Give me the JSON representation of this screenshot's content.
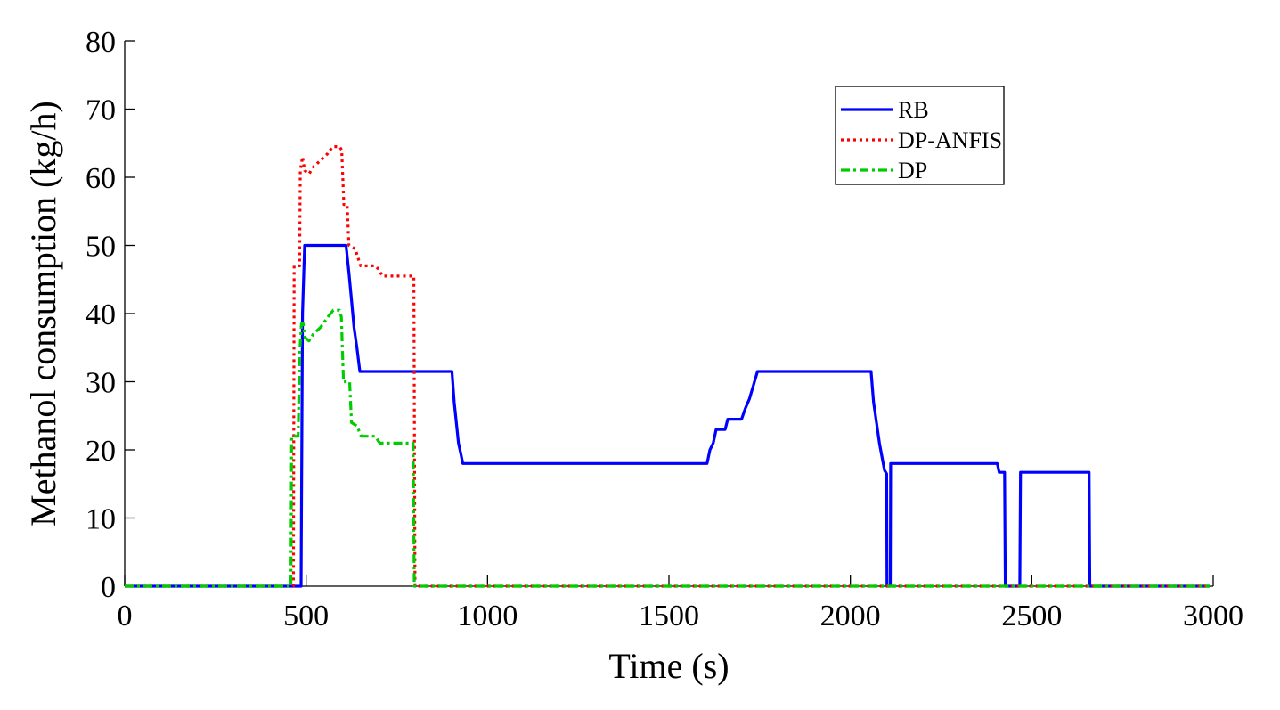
{
  "chart_data": {
    "type": "line",
    "title": "",
    "xlabel": "Time (s)",
    "ylabel": "Methanol consumption (kg/h)",
    "xlim": [
      0,
      3000
    ],
    "ylim": [
      0,
      80
    ],
    "xticks": [
      0,
      500,
      1000,
      1500,
      2000,
      2500,
      3000
    ],
    "yticks": [
      0,
      10,
      20,
      30,
      40,
      50,
      60,
      70,
      80
    ],
    "grid": false,
    "legend": {
      "position": "top-right-inside",
      "box": true
    },
    "series": [
      {
        "name": "RB",
        "color": "#0000ff",
        "style": "solid",
        "points": [
          [
            0,
            0
          ],
          [
            486,
            0
          ],
          [
            490,
            40
          ],
          [
            496,
            50
          ],
          [
            610,
            50
          ],
          [
            618,
            46
          ],
          [
            625,
            42
          ],
          [
            632,
            38
          ],
          [
            640,
            35
          ],
          [
            648,
            31.5
          ],
          [
            902,
            31.5
          ],
          [
            908,
            27
          ],
          [
            914,
            24
          ],
          [
            920,
            21
          ],
          [
            926,
            19.5
          ],
          [
            932,
            18
          ],
          [
            1605,
            18
          ],
          [
            1613,
            20
          ],
          [
            1622,
            21
          ],
          [
            1630,
            23
          ],
          [
            1655,
            23
          ],
          [
            1662,
            24.5
          ],
          [
            1700,
            24.5
          ],
          [
            1710,
            26
          ],
          [
            1722,
            27.5
          ],
          [
            1733,
            29.5
          ],
          [
            1744,
            31.5
          ],
          [
            2057,
            31.5
          ],
          [
            2064,
            27
          ],
          [
            2072,
            24
          ],
          [
            2080,
            21
          ],
          [
            2087,
            19
          ],
          [
            2094,
            17
          ],
          [
            2100,
            16.5
          ],
          [
            2101,
            0
          ],
          [
            2110,
            0
          ],
          [
            2111,
            18
          ],
          [
            2405,
            18
          ],
          [
            2410,
            16.7
          ],
          [
            2425,
            16.7
          ],
          [
            2427,
            0
          ],
          [
            2467,
            0
          ],
          [
            2469,
            16.7
          ],
          [
            2658,
            16.7
          ],
          [
            2660,
            0
          ],
          [
            2990,
            0
          ]
        ]
      },
      {
        "name": "DP-ANFIS",
        "color": "#ff0000",
        "style": "dotted",
        "points": [
          [
            0,
            0
          ],
          [
            465,
            0
          ],
          [
            467,
            47
          ],
          [
            482,
            47
          ],
          [
            484,
            61
          ],
          [
            490,
            63
          ],
          [
            496,
            61
          ],
          [
            508,
            60.5
          ],
          [
            520,
            61.5
          ],
          [
            540,
            62.5
          ],
          [
            560,
            63.5
          ],
          [
            573,
            64.5
          ],
          [
            592,
            64.5
          ],
          [
            598,
            64
          ],
          [
            604,
            56
          ],
          [
            613,
            56
          ],
          [
            618,
            50
          ],
          [
            635,
            49.5
          ],
          [
            650,
            47
          ],
          [
            690,
            47
          ],
          [
            700,
            46.5
          ],
          [
            710,
            45.5
          ],
          [
            797,
            45.5
          ],
          [
            800,
            0
          ],
          [
            2990,
            0
          ]
        ]
      },
      {
        "name": "DP",
        "color": "#00cc00",
        "style": "dashdot",
        "points": [
          [
            0,
            0
          ],
          [
            458,
            0
          ],
          [
            460,
            22
          ],
          [
            478,
            22
          ],
          [
            482,
            34
          ],
          [
            487,
            38.5
          ],
          [
            492,
            38.5
          ],
          [
            497,
            36.5
          ],
          [
            508,
            36
          ],
          [
            520,
            37
          ],
          [
            540,
            38
          ],
          [
            560,
            39.5
          ],
          [
            575,
            40.5
          ],
          [
            592,
            40.5
          ],
          [
            597,
            39.5
          ],
          [
            603,
            30
          ],
          [
            620,
            30
          ],
          [
            625,
            24
          ],
          [
            640,
            23.5
          ],
          [
            652,
            22
          ],
          [
            690,
            22
          ],
          [
            703,
            21
          ],
          [
            795,
            21
          ],
          [
            798,
            0
          ],
          [
            2990,
            0
          ]
        ]
      }
    ]
  }
}
